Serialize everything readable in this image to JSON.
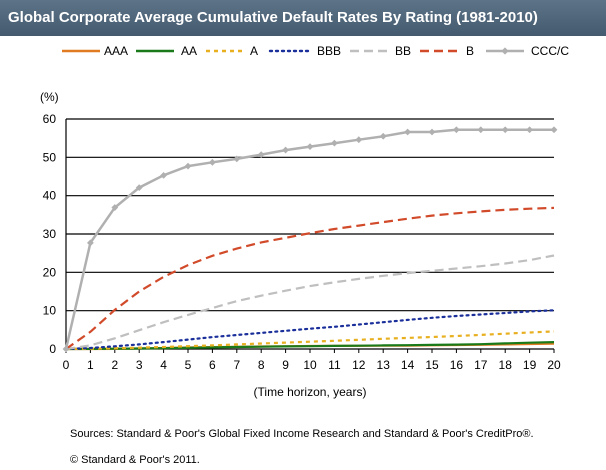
{
  "chart_data": {
    "type": "line",
    "title": "Global Corporate Average Cumulative Default Rates By Rating (1981-2010)",
    "ylabel": "(%)",
    "xlabel": "(Time horizon, years)",
    "ylim": [
      0,
      60
    ],
    "xlim": [
      0,
      20
    ],
    "y_ticks": [
      0,
      10,
      20,
      30,
      40,
      50,
      60
    ],
    "x": [
      0,
      1,
      2,
      3,
      4,
      5,
      6,
      7,
      8,
      9,
      10,
      11,
      12,
      13,
      14,
      15,
      16,
      17,
      18,
      19,
      20
    ],
    "grid": "horizontal",
    "legend_position": "top",
    "series": [
      {
        "name": "AAA",
        "color": "#e07b22",
        "dash": "solid",
        "marker": "none",
        "values": [
          0,
          0,
          0.03,
          0.14,
          0.26,
          0.38,
          0.5,
          0.56,
          0.64,
          0.7,
          0.77,
          0.8,
          0.83,
          0.86,
          0.9,
          0.96,
          1.04,
          1.1,
          1.2,
          1.3,
          1.38
        ]
      },
      {
        "name": "AA",
        "color": "#1a7a1a",
        "dash": "solid",
        "marker": "none",
        "values": [
          0,
          0.02,
          0.07,
          0.12,
          0.22,
          0.32,
          0.42,
          0.52,
          0.6,
          0.67,
          0.74,
          0.8,
          0.86,
          0.93,
          1.0,
          1.08,
          1.15,
          1.25,
          1.45,
          1.65,
          1.8
        ]
      },
      {
        "name": "A",
        "color": "#e8b020",
        "dash": "dash",
        "marker": "none",
        "values": [
          0,
          0.08,
          0.2,
          0.35,
          0.53,
          0.73,
          0.95,
          1.2,
          1.44,
          1.67,
          1.9,
          2.14,
          2.4,
          2.66,
          2.9,
          3.14,
          3.4,
          3.69,
          4.0,
          4.3,
          4.6
        ]
      },
      {
        "name": "BBB",
        "color": "#1a2f9a",
        "dash": "dot",
        "marker": "none",
        "values": [
          0,
          0.25,
          0.7,
          1.2,
          1.8,
          2.45,
          3.1,
          3.65,
          4.2,
          4.75,
          5.3,
          5.8,
          6.4,
          7.0,
          7.6,
          8.15,
          8.6,
          9.0,
          9.4,
          9.8,
          10.1
        ]
      },
      {
        "name": "BB",
        "color": "#bfbfbf",
        "dash": "longdash",
        "marker": "none",
        "values": [
          0,
          0.95,
          2.8,
          4.9,
          7.0,
          8.9,
          10.7,
          12.5,
          13.9,
          15.2,
          16.4,
          17.4,
          18.3,
          19.1,
          19.8,
          20.4,
          21.0,
          21.6,
          22.3,
          23.2,
          24.4
        ]
      },
      {
        "name": "B",
        "color": "#d14a2a",
        "dash": "longdash",
        "marker": "none",
        "values": [
          0,
          4.5,
          10.2,
          15.0,
          18.8,
          21.9,
          24.3,
          26.2,
          27.8,
          29.0,
          30.2,
          31.3,
          32.2,
          33.1,
          34.0,
          34.8,
          35.4,
          35.9,
          36.3,
          36.6,
          36.8
        ]
      },
      {
        "name": "CCC/C",
        "color": "#b0b0b0",
        "dash": "solid",
        "marker": "diamond",
        "values": [
          0,
          27.7,
          36.9,
          42.1,
          45.3,
          47.7,
          48.7,
          49.6,
          50.7,
          51.9,
          52.8,
          53.7,
          54.6,
          55.5,
          56.6,
          56.6,
          57.2,
          57.2,
          57.2,
          57.2,
          57.2
        ]
      }
    ]
  },
  "footer": {
    "sources": "Sources: Standard & Poor's Global Fixed Income Research and Standard & Poor's CreditPro®.",
    "copyright": "© Standard & Poor's 2011."
  }
}
